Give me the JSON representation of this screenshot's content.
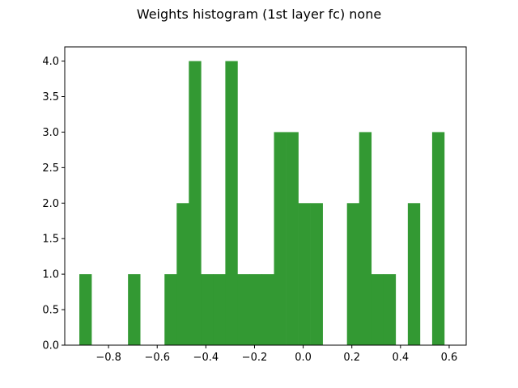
{
  "chart_data": {
    "type": "bar",
    "title": "Weights histogram (1st layer fc) none",
    "bar_color": "#339933",
    "bin_width": 0.05,
    "bins": [
      {
        "left": -0.92,
        "count": 1
      },
      {
        "left": -0.87,
        "count": 0
      },
      {
        "left": -0.82,
        "count": 0
      },
      {
        "left": -0.77,
        "count": 0
      },
      {
        "left": -0.72,
        "count": 1
      },
      {
        "left": -0.67,
        "count": 0
      },
      {
        "left": -0.62,
        "count": 0
      },
      {
        "left": -0.57,
        "count": 1
      },
      {
        "left": -0.52,
        "count": 2
      },
      {
        "left": -0.47,
        "count": 4
      },
      {
        "left": -0.42,
        "count": 1
      },
      {
        "left": -0.37,
        "count": 1
      },
      {
        "left": -0.32,
        "count": 4
      },
      {
        "left": -0.27,
        "count": 1
      },
      {
        "left": -0.22,
        "count": 1
      },
      {
        "left": -0.17,
        "count": 1
      },
      {
        "left": -0.12,
        "count": 3
      },
      {
        "left": -0.07,
        "count": 3
      },
      {
        "left": -0.02,
        "count": 2
      },
      {
        "left": 0.03,
        "count": 2
      },
      {
        "left": 0.08,
        "count": 0
      },
      {
        "left": 0.13,
        "count": 0
      },
      {
        "left": 0.18,
        "count": 2
      },
      {
        "left": 0.23,
        "count": 3
      },
      {
        "left": 0.28,
        "count": 1
      },
      {
        "left": 0.33,
        "count": 1
      },
      {
        "left": 0.38,
        "count": 0
      },
      {
        "left": 0.43,
        "count": 2
      },
      {
        "left": 0.48,
        "count": 0
      },
      {
        "left": 0.53,
        "count": 3
      }
    ],
    "xlim": [
      -0.98,
      0.67
    ],
    "ylim": [
      0,
      4.2
    ],
    "xticks": [
      -0.8,
      -0.6,
      -0.4,
      -0.2,
      0.0,
      0.2,
      0.4,
      0.6
    ],
    "xtick_labels": [
      "−0.8",
      "−0.6",
      "−0.4",
      "−0.2",
      "0.0",
      "0.2",
      "0.4",
      "0.6"
    ],
    "yticks": [
      0.0,
      0.5,
      1.0,
      1.5,
      2.0,
      2.5,
      3.0,
      3.5,
      4.0
    ],
    "ytick_labels": [
      "0.0",
      "0.5",
      "1.0",
      "1.5",
      "2.0",
      "2.5",
      "3.0",
      "3.5",
      "4.0"
    ],
    "grid": false,
    "xlabel": "",
    "ylabel": ""
  }
}
